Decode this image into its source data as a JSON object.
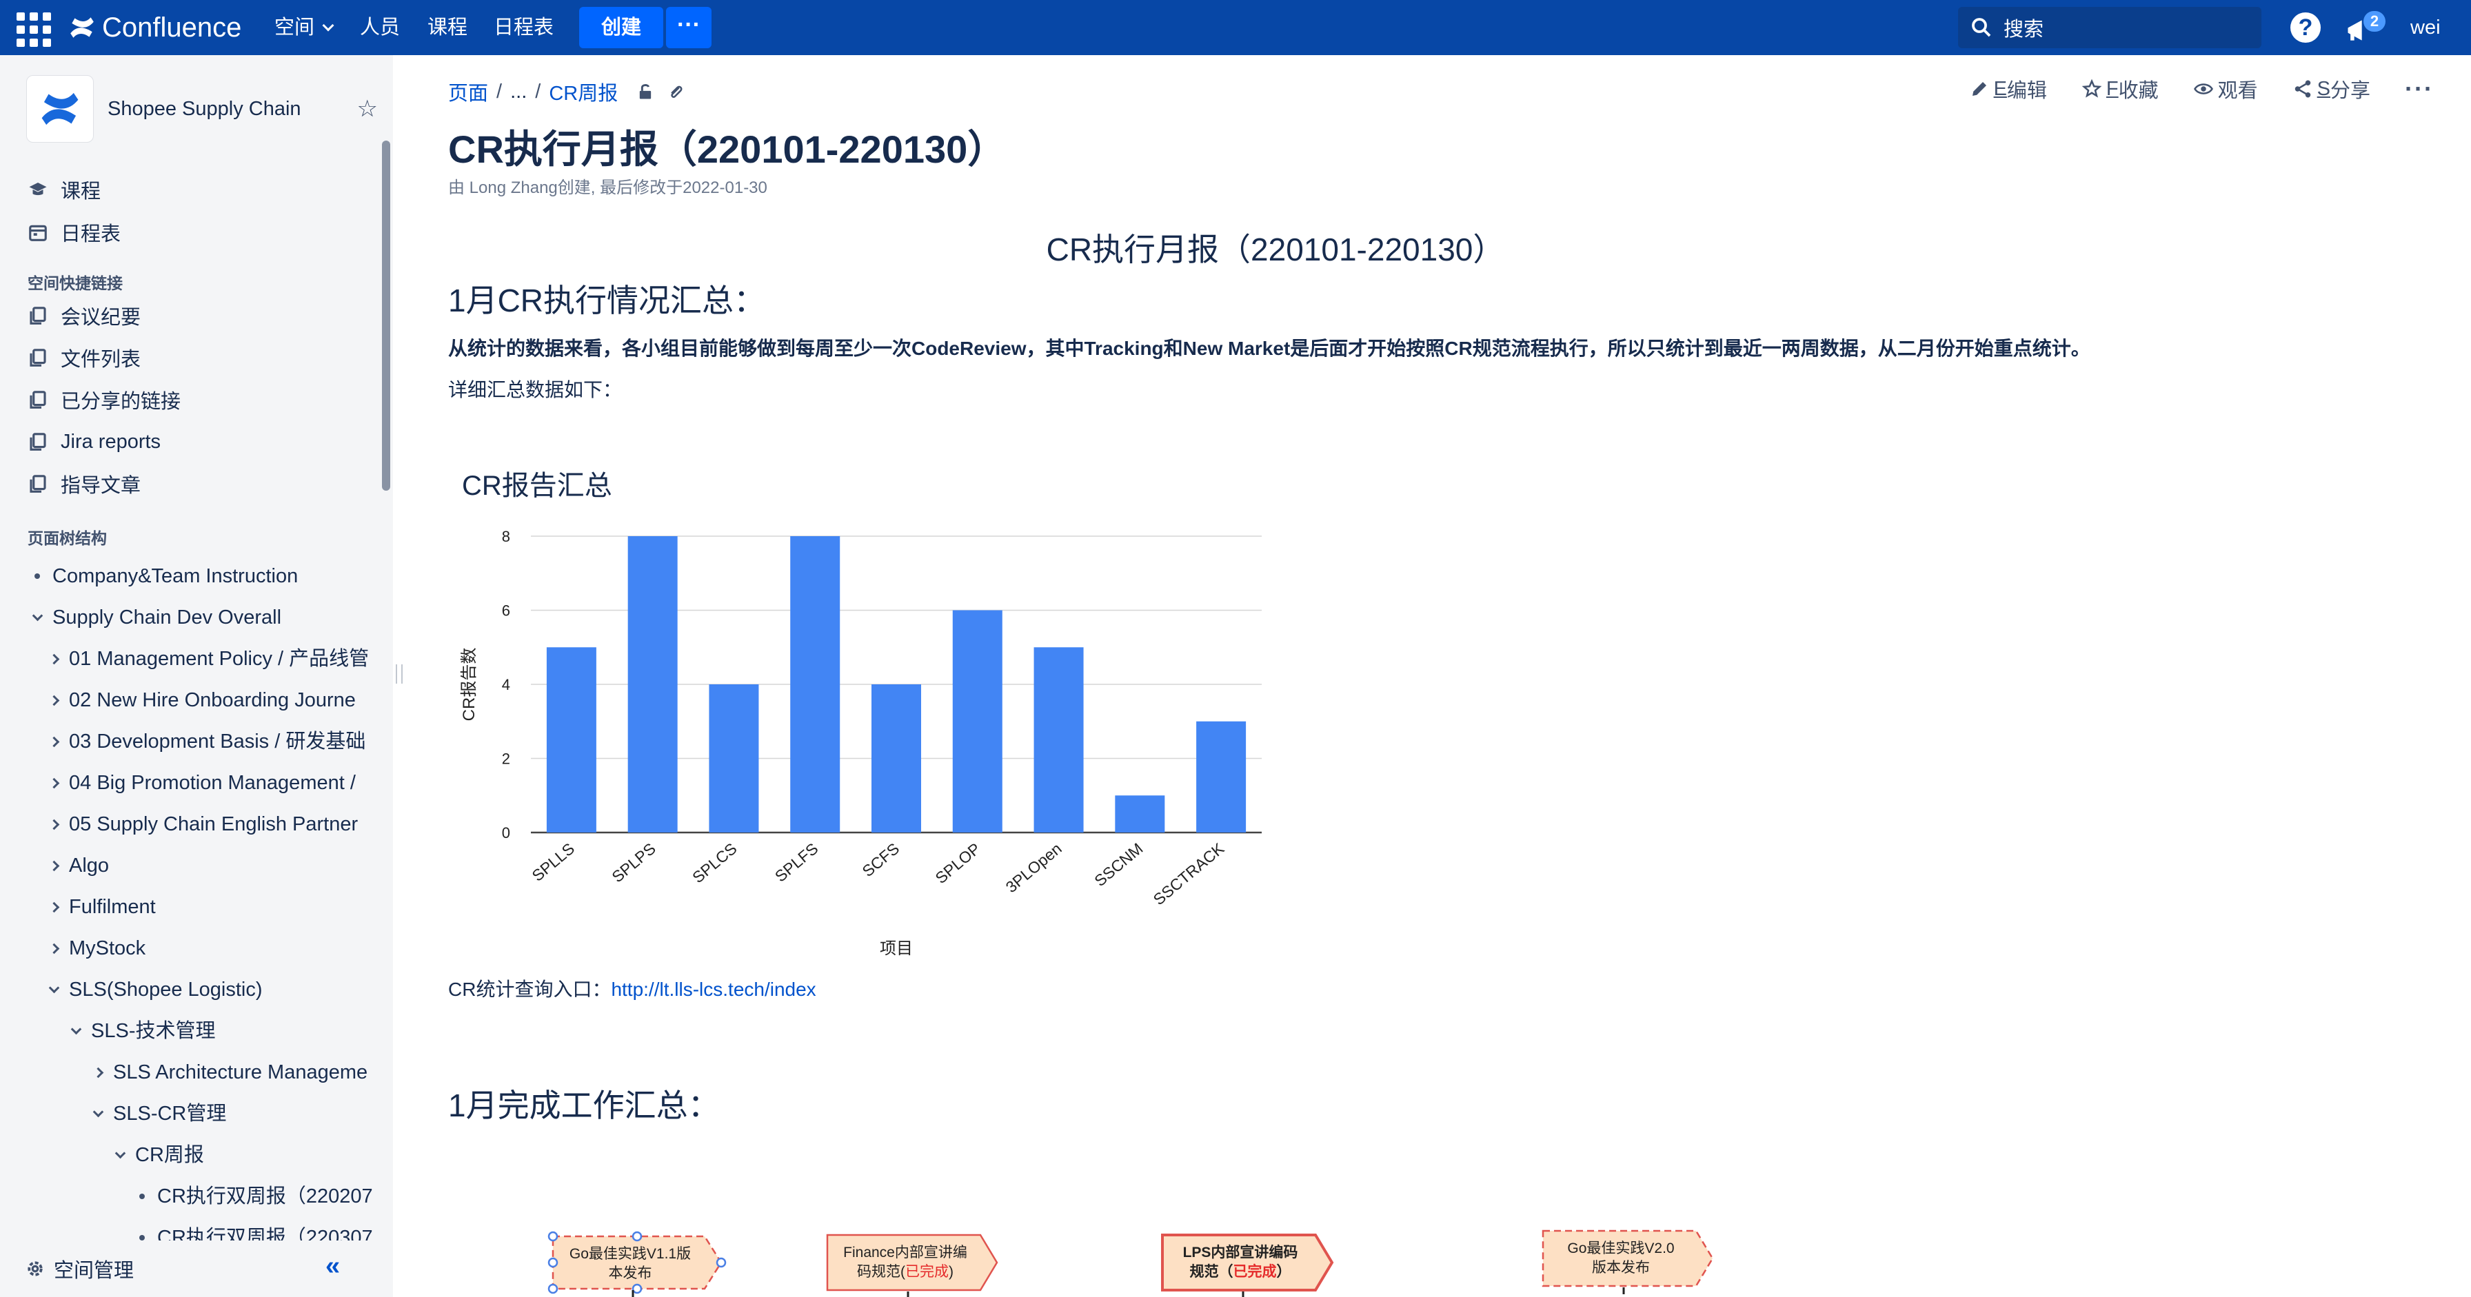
{
  "topnav": {
    "app_name": "Confluence",
    "nav": [
      {
        "label": "空间",
        "has_dropdown": true
      },
      {
        "label": "人员"
      },
      {
        "label": "课程"
      },
      {
        "label": "日程表"
      }
    ],
    "create_label": "创建",
    "more_label": "···",
    "search_placeholder": "搜索",
    "help_label": "?",
    "notification_count": "2",
    "user_label": "wei",
    "colors": {
      "bar": "#0747a6",
      "button": "#0065ff"
    }
  },
  "sidebar": {
    "space_name": "Shopee Supply Chain",
    "links_top": [
      {
        "label": "课程",
        "icon": "graduation-icon"
      },
      {
        "label": "日程表",
        "icon": "calendar-icon"
      }
    ],
    "shortcuts_heading": "空间快捷链接",
    "shortcuts": [
      {
        "label": "会议纪要",
        "icon": "copy-icon"
      },
      {
        "label": "文件列表",
        "icon": "copy-icon"
      },
      {
        "label": "已分享的链接",
        "icon": "copy-icon"
      },
      {
        "label": "Jira reports",
        "icon": "copy-icon"
      },
      {
        "label": "指导文章",
        "icon": "copy-icon"
      }
    ],
    "tree_heading": "页面树结构",
    "tree": [
      {
        "label": "Company&Team Instruction",
        "toggle": "bullet",
        "level": 0
      },
      {
        "label": "Supply Chain Dev Overall",
        "toggle": "expanded",
        "level": 0
      },
      {
        "label": "01 Management Policy / 产品线管",
        "toggle": "collapsed",
        "level": 1
      },
      {
        "label": "02 New Hire Onboarding Journe",
        "toggle": "collapsed",
        "level": 1
      },
      {
        "label": "03 Development Basis / 研发基础",
        "toggle": "collapsed",
        "level": 1
      },
      {
        "label": "04 Big Promotion Management /",
        "toggle": "collapsed",
        "level": 1
      },
      {
        "label": "05 Supply Chain English Partner",
        "toggle": "collapsed",
        "level": 1
      },
      {
        "label": "Algo",
        "toggle": "collapsed",
        "level": 1
      },
      {
        "label": "Fulfilment",
        "toggle": "collapsed",
        "level": 1
      },
      {
        "label": "MyStock",
        "toggle": "collapsed",
        "level": 1
      },
      {
        "label": "SLS(Shopee Logistic)",
        "toggle": "expanded",
        "level": 1
      },
      {
        "label": "SLS-技术管理",
        "toggle": "expanded",
        "level": 2
      },
      {
        "label": "SLS Architecture Manageme",
        "toggle": "collapsed",
        "level": 3
      },
      {
        "label": "SLS-CR管理",
        "toggle": "expanded",
        "level": 3
      },
      {
        "label": "CR周报",
        "toggle": "expanded",
        "level": 4
      },
      {
        "label": "CR执行双周报（220207",
        "toggle": "bullet",
        "level": 5
      },
      {
        "label": "CR执行双周报（220307",
        "toggle": "bullet",
        "level": 5
      }
    ],
    "space_admin_label": "空间管理",
    "collapse_label": "«"
  },
  "page": {
    "breadcrumb": {
      "root": "页面",
      "ellipsis": "...",
      "current": "CR周报"
    },
    "actions": [
      {
        "prefix": "E",
        "label": "编辑",
        "icon": "pencil-icon"
      },
      {
        "prefix": "F",
        "label": "收藏",
        "icon": "star-icon"
      },
      {
        "prefix": "",
        "label": "观看",
        "icon": "eye-icon"
      },
      {
        "prefix": "S",
        "label": "分享",
        "icon": "share-icon"
      }
    ],
    "more_actions": "···",
    "title": "CR执行月报（220101-220130）",
    "byline": "由 Long Zhang创建, 最后修改于2022-01-30",
    "doc_title": "CR执行月报（220101-220130）",
    "section1_heading": "1月CR执行情况汇总：",
    "summary": "从统计的数据来看，各小组目前能够做到每周至少一次CodeReview，其中Tracking和New Market是后面才开始按照CR规范流程执行，所以只统计到最近一两周数据，从二月份开始重点统计。",
    "detail_intro": "详细汇总数据如下：",
    "stats_label": "CR统计查询入口：",
    "stats_link": "http://lt.lls-lcs.tech/index",
    "section2_heading": "1月完成工作汇总："
  },
  "chart_data": {
    "type": "bar",
    "title": "CR报告汇总",
    "xlabel": "项目",
    "ylabel": "CR报告数",
    "categories": [
      "SPLLS",
      "SPLPS",
      "SPLCS",
      "SPLFS",
      "SCFS",
      "SPLOP",
      "3PLOpen",
      "SSCNM",
      "SSCTRACK"
    ],
    "values": [
      5,
      8,
      4,
      8,
      4,
      6,
      5,
      1,
      3
    ],
    "ylim": [
      0,
      8
    ],
    "yticks": [
      0,
      2,
      4,
      6,
      8
    ],
    "grid": true,
    "bar_color": "#4285f4"
  },
  "flow": {
    "milestones": [
      {
        "line1": "Go最佳实践V1.1版",
        "line2": "本发布",
        "done": "",
        "style": "selected"
      },
      {
        "line1": "Finance内部宣讲编",
        "line2": "码规范(",
        "done": "已完成",
        "tail": ")",
        "style": "solid"
      },
      {
        "line1": "LPS内部宣讲编码",
        "line2": "规范（",
        "done": "已完成",
        "tail": "）",
        "style": "bold-red"
      },
      {
        "line1": "Go最佳实践V2.0",
        "line2": "版本发布",
        "done": "",
        "style": "dashed"
      }
    ],
    "colors": {
      "fill": "#fde0c4",
      "border": "#e0544e",
      "done_text": "#e52b2b"
    }
  }
}
